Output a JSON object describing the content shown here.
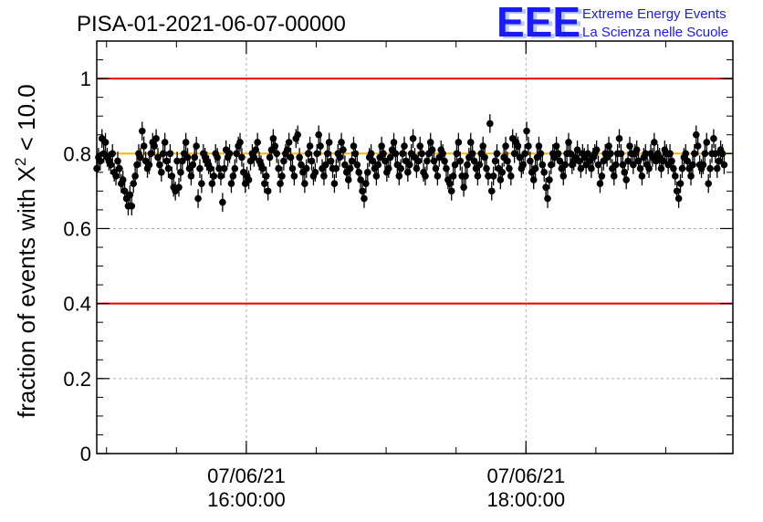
{
  "chart_data": {
    "type": "scatter",
    "title": "PISA-01-2021-06-07-00000",
    "ylabel_prefix": "fraction of events with ",
    "ylabel_symbol": "X",
    "ylabel_sup": "2",
    "ylabel_suffix": " < 10.0",
    "xlabel": "",
    "ylim": [
      0,
      1.1
    ],
    "yticks": [
      0,
      0.2,
      0.4,
      0.6,
      0.8,
      1
    ],
    "ytick_labels": [
      "0",
      "0.2",
      "0.4",
      "0.6",
      "0.8",
      "1"
    ],
    "x_unit": "hours",
    "xlim": [
      14.93,
      19.48
    ],
    "xticks": [
      {
        "value": 16.0,
        "date": "07/06/21",
        "time": "16:00:00"
      },
      {
        "value": 18.0,
        "date": "07/06/21",
        "time": "18:00:00"
      }
    ],
    "grid": true,
    "reference_lines": [
      {
        "y": 1.0,
        "color": "#e60000"
      },
      {
        "y": 0.4,
        "color": "#e60000"
      },
      {
        "y": 0.8,
        "color": "#ffb300"
      }
    ],
    "marker_color": "#000000",
    "error": 0.025,
    "x_start": 14.93,
    "x_step": 0.0125,
    "y": [
      0.76,
      0.79,
      0.78,
      0.84,
      0.8,
      0.83,
      0.79,
      0.78,
      0.77,
      0.8,
      0.75,
      0.74,
      0.78,
      0.76,
      0.72,
      0.73,
      0.7,
      0.68,
      0.66,
      0.69,
      0.66,
      0.72,
      0.74,
      0.77,
      0.8,
      0.79,
      0.86,
      0.82,
      0.78,
      0.76,
      0.77,
      0.8,
      0.83,
      0.82,
      0.84,
      0.79,
      0.77,
      0.75,
      0.8,
      0.83,
      0.78,
      0.76,
      0.8,
      0.74,
      0.71,
      0.7,
      0.78,
      0.71,
      0.75,
      0.78,
      0.8,
      0.83,
      0.79,
      0.76,
      0.74,
      0.77,
      0.79,
      0.82,
      0.68,
      0.76,
      0.72,
      0.8,
      0.79,
      0.78,
      0.77,
      0.76,
      0.72,
      0.74,
      0.8,
      0.79,
      0.76,
      0.74,
      0.67,
      0.76,
      0.81,
      0.79,
      0.8,
      0.72,
      0.74,
      0.76,
      0.8,
      0.82,
      0.83,
      0.79,
      0.75,
      0.72,
      0.74,
      0.73,
      0.78,
      0.8,
      0.79,
      0.81,
      0.83,
      0.78,
      0.77,
      0.76,
      0.72,
      0.74,
      0.7,
      0.79,
      0.81,
      0.84,
      0.82,
      0.8,
      0.76,
      0.72,
      0.74,
      0.78,
      0.8,
      0.81,
      0.83,
      0.79,
      0.76,
      0.74,
      0.84,
      0.85,
      0.79,
      0.77,
      0.75,
      0.72,
      0.76,
      0.8,
      0.82,
      0.78,
      0.74,
      0.75,
      0.8,
      0.85,
      0.82,
      0.76,
      0.74,
      0.77,
      0.8,
      0.83,
      0.78,
      0.76,
      0.72,
      0.76,
      0.8,
      0.79,
      0.83,
      0.81,
      0.77,
      0.75,
      0.73,
      0.76,
      0.78,
      0.82,
      0.8,
      0.77,
      0.75,
      0.73,
      0.7,
      0.68,
      0.72,
      0.75,
      0.79,
      0.8,
      0.78,
      0.76,
      0.74,
      0.77,
      0.79,
      0.82,
      0.8,
      0.78,
      0.75,
      0.76,
      0.79,
      0.81,
      0.83,
      0.8,
      0.77,
      0.74,
      0.76,
      0.8,
      0.82,
      0.78,
      0.75,
      0.77,
      0.8,
      0.84,
      0.79,
      0.76,
      0.78,
      0.82,
      0.8,
      0.75,
      0.74,
      0.78,
      0.8,
      0.83,
      0.81,
      0.78,
      0.76,
      0.74,
      0.79,
      0.81,
      0.8,
      0.78,
      0.76,
      0.73,
      0.72,
      0.7,
      0.74,
      0.77,
      0.8,
      0.83,
      0.78,
      0.74,
      0.71,
      0.74,
      0.77,
      0.79,
      0.83,
      0.8,
      0.78,
      0.76,
      0.74,
      0.77,
      0.8,
      0.82,
      0.79,
      0.76,
      0.74,
      0.88,
      0.7,
      0.74,
      0.78,
      0.8,
      0.76,
      0.73,
      0.75,
      0.79,
      0.82,
      0.78,
      0.76,
      0.74,
      0.84,
      0.8,
      0.83,
      0.82,
      0.79,
      0.76,
      0.77,
      0.8,
      0.86,
      0.82,
      0.78,
      0.75,
      0.73,
      0.76,
      0.79,
      0.82,
      0.8,
      0.77,
      0.75,
      0.71,
      0.68,
      0.73,
      0.77,
      0.8,
      0.79,
      0.82,
      0.8,
      0.78,
      0.76,
      0.74,
      0.77,
      0.8,
      0.83,
      0.8,
      0.77,
      0.78,
      0.79,
      0.81,
      0.78,
      0.76,
      0.8,
      0.79,
      0.77,
      0.8,
      0.78,
      0.76,
      0.79,
      0.8,
      0.81,
      0.77,
      0.72,
      0.74,
      0.78,
      0.8,
      0.79,
      0.82,
      0.8,
      0.76,
      0.74,
      0.77,
      0.8,
      0.84,
      0.8,
      0.77,
      0.75,
      0.73,
      0.78,
      0.82,
      0.8,
      0.77,
      0.8,
      0.81,
      0.78,
      0.76,
      0.74,
      0.79,
      0.8,
      0.77,
      0.76,
      0.8,
      0.79,
      0.83,
      0.78,
      0.8,
      0.79,
      0.76,
      0.78,
      0.81,
      0.8,
      0.77,
      0.8,
      0.78,
      0.76,
      0.74,
      0.7,
      0.68,
      0.72,
      0.76,
      0.79,
      0.8,
      0.78,
      0.76,
      0.74,
      0.77,
      0.8,
      0.85,
      0.82,
      0.77,
      0.76,
      0.77,
      0.8,
      0.83,
      0.72,
      0.76,
      0.8,
      0.84,
      0.8,
      0.76,
      0.78,
      0.81,
      0.8,
      0.77
    ]
  },
  "logo": {
    "mark": "EEE",
    "line1": "Extreme Energy Events",
    "line2": "La Scienza nelle Scuole"
  }
}
